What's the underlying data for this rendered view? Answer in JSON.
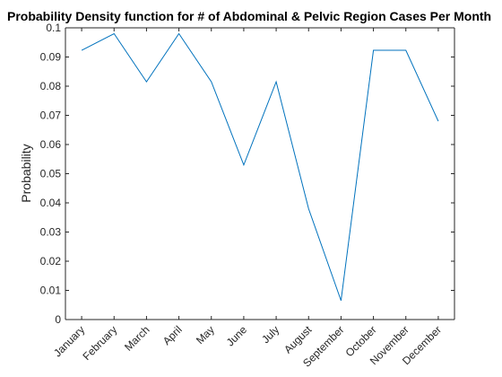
{
  "chart_data": {
    "type": "line",
    "title": "Probability Density function for # of Abdominal & Pelvic Region Cases Per Month",
    "xlabel": "",
    "ylabel": "Probability",
    "categories": [
      "January",
      "February",
      "March",
      "April",
      "May",
      "June",
      "July",
      "August",
      "September",
      "October",
      "November",
      "December"
    ],
    "values": [
      0.0923,
      0.098,
      0.0815,
      0.098,
      0.0815,
      0.053,
      0.0815,
      0.038,
      0.0065,
      0.0923,
      0.0923,
      0.068
    ],
    "ylim": [
      0,
      0.1
    ],
    "yticks": [
      0,
      0.01,
      0.02,
      0.03,
      0.04,
      0.05,
      0.06,
      0.07,
      0.08,
      0.09,
      0.1
    ],
    "ytick_labels": [
      "0",
      "0.01",
      "0.02",
      "0.03",
      "0.04",
      "0.05",
      "0.06",
      "0.07",
      "0.08",
      "0.09",
      "0.1"
    ],
    "grid": false,
    "line_color": "#0072BD",
    "axis_color": "#262626"
  }
}
